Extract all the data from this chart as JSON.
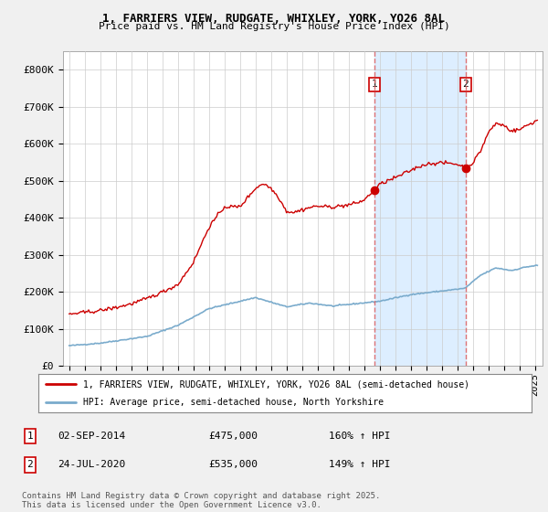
{
  "title_line1": "1, FARRIERS VIEW, RUDGATE, WHIXLEY, YORK, YO26 8AL",
  "title_line2": "Price paid vs. HM Land Registry's House Price Index (HPI)",
  "ylim": [
    0,
    850000
  ],
  "yticks": [
    0,
    100000,
    200000,
    300000,
    400000,
    500000,
    600000,
    700000,
    800000
  ],
  "ytick_labels": [
    "£0",
    "£100K",
    "£200K",
    "£300K",
    "£400K",
    "£500K",
    "£600K",
    "£700K",
    "£800K"
  ],
  "background_color": "#f0f0f0",
  "plot_bg_color": "#ffffff",
  "red_color": "#cc0000",
  "blue_color": "#7aabcc",
  "shade_color": "#ddeeff",
  "vline_color": "#dd6666",
  "sale1_x": 2014.67,
  "sale1_price": 475000,
  "sale2_x": 2020.55,
  "sale2_price": 535000,
  "legend_line1": "1, FARRIERS VIEW, RUDGATE, WHIXLEY, YORK, YO26 8AL (semi-detached house)",
  "legend_line2": "HPI: Average price, semi-detached house, North Yorkshire",
  "table_row1": [
    "1",
    "02-SEP-2014",
    "£475,000",
    "160% ↑ HPI"
  ],
  "table_row2": [
    "2",
    "24-JUL-2020",
    "£535,000",
    "149% ↑ HPI"
  ],
  "footer": "Contains HM Land Registry data © Crown copyright and database right 2025.\nThis data is licensed under the Open Government Licence v3.0.",
  "xlim": [
    1994.6,
    2025.5
  ],
  "xtick_years": [
    1995,
    1996,
    1997,
    1998,
    1999,
    2000,
    2001,
    2002,
    2003,
    2004,
    2005,
    2006,
    2007,
    2008,
    2009,
    2010,
    2011,
    2012,
    2013,
    2014,
    2015,
    2016,
    2017,
    2018,
    2019,
    2020,
    2021,
    2022,
    2023,
    2024,
    2025
  ]
}
